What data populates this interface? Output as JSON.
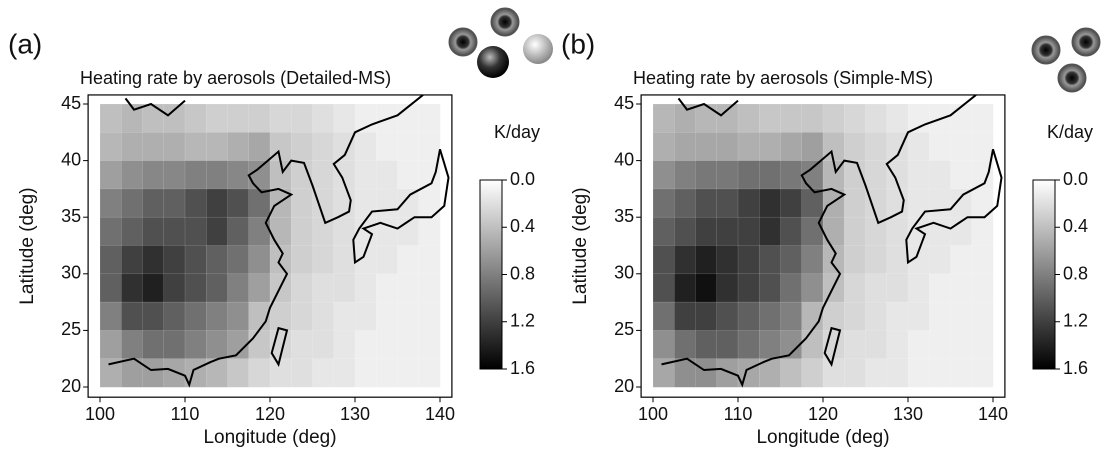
{
  "charts": [
    {
      "type": "heatmap",
      "panel_label": "(a)",
      "title": "Heating rate by aerosols (Detailed-MS)",
      "x_label": "Longitude (deg)",
      "y_label": "Latitude (deg)",
      "xlim": [
        98.6,
        141.4
      ],
      "ylim": [
        19.1,
        45.8
      ],
      "xticks": [
        100,
        110,
        120,
        130,
        140
      ],
      "yticks": [
        20,
        25,
        30,
        35,
        40,
        45
      ],
      "x": [
        101.25,
        103.75,
        106.25,
        108.75,
        111.25,
        113.75,
        116.25,
        118.75,
        121.25,
        123.75,
        126.25,
        128.75,
        131.25,
        133.75,
        136.25,
        138.75
      ],
      "y": [
        43.75,
        41.25,
        38.75,
        36.25,
        33.75,
        31.25,
        28.75,
        26.25,
        23.75,
        21.25
      ],
      "values": [
        [
          0.4,
          0.45,
          0.4,
          0.4,
          0.35,
          0.3,
          0.3,
          0.3,
          0.25,
          0.25,
          0.2,
          0.15,
          0.1,
          0.1,
          0.1,
          0.1
        ],
        [
          0.45,
          0.5,
          0.5,
          0.5,
          0.45,
          0.45,
          0.5,
          0.55,
          0.35,
          0.3,
          0.25,
          0.2,
          0.15,
          0.1,
          0.1,
          0.1
        ],
        [
          0.6,
          0.7,
          0.75,
          0.75,
          0.8,
          0.8,
          0.75,
          0.7,
          0.4,
          0.3,
          0.25,
          0.2,
          0.15,
          0.15,
          0.1,
          0.1
        ],
        [
          0.8,
          0.9,
          1.0,
          1.0,
          1.1,
          1.2,
          1.1,
          0.9,
          0.45,
          0.3,
          0.25,
          0.2,
          0.15,
          0.15,
          0.15,
          0.1
        ],
        [
          0.9,
          1.0,
          1.1,
          1.1,
          1.1,
          1.2,
          1.0,
          0.8,
          0.45,
          0.3,
          0.25,
          0.2,
          0.15,
          0.15,
          0.15,
          0.1
        ],
        [
          1.0,
          1.2,
          1.3,
          1.2,
          1.1,
          1.0,
          0.9,
          0.7,
          0.4,
          0.3,
          0.25,
          0.2,
          0.15,
          0.15,
          0.1,
          0.1
        ],
        [
          1.0,
          1.3,
          1.4,
          1.2,
          1.1,
          1.0,
          0.8,
          0.6,
          0.35,
          0.25,
          0.2,
          0.2,
          0.15,
          0.1,
          0.1,
          0.1
        ],
        [
          0.8,
          1.1,
          1.1,
          1.0,
          0.9,
          0.8,
          0.7,
          0.4,
          0.3,
          0.25,
          0.2,
          0.15,
          0.15,
          0.1,
          0.1,
          0.1
        ],
        [
          0.6,
          0.8,
          0.9,
          0.9,
          0.8,
          0.7,
          0.6,
          0.35,
          0.25,
          0.2,
          0.2,
          0.15,
          0.1,
          0.1,
          0.1,
          0.1
        ],
        [
          0.5,
          0.6,
          0.6,
          0.55,
          0.5,
          0.45,
          0.35,
          0.25,
          0.2,
          0.2,
          0.15,
          0.15,
          0.1,
          0.1,
          0.1,
          0.1
        ]
      ],
      "colorbar": {
        "label": "K/day",
        "lim": [
          0,
          1.6
        ],
        "ticks": [
          {
            "value": 0,
            "label": "0.0"
          },
          0.4,
          0.8,
          1.2,
          1.6
        ]
      }
    },
    {
      "type": "heatmap",
      "panel_label": "(b)",
      "title": "Heating rate by aerosols (Simple-MS)",
      "x_label": "Longitude (deg)",
      "y_label": "Latitude (deg)",
      "xlim": [
        98.6,
        141.4
      ],
      "ylim": [
        19.1,
        45.8
      ],
      "xticks": [
        100,
        110,
        120,
        130,
        140
      ],
      "yticks": [
        20,
        25,
        30,
        35,
        40,
        45
      ],
      "x": [
        101.25,
        103.75,
        106.25,
        108.75,
        111.25,
        113.75,
        116.25,
        118.75,
        121.25,
        123.75,
        126.25,
        128.75,
        131.25,
        133.75,
        136.25,
        138.75
      ],
      "y": [
        43.75,
        41.25,
        38.75,
        36.25,
        33.75,
        31.25,
        28.75,
        26.25,
        23.75,
        21.25
      ],
      "values": [
        [
          0.45,
          0.5,
          0.45,
          0.45,
          0.4,
          0.35,
          0.35,
          0.35,
          0.3,
          0.25,
          0.2,
          0.15,
          0.1,
          0.1,
          0.1,
          0.1
        ],
        [
          0.5,
          0.55,
          0.55,
          0.55,
          0.5,
          0.5,
          0.55,
          0.6,
          0.4,
          0.3,
          0.25,
          0.2,
          0.15,
          0.1,
          0.1,
          0.1
        ],
        [
          0.7,
          0.8,
          0.85,
          0.85,
          0.9,
          0.9,
          0.85,
          0.8,
          0.45,
          0.3,
          0.25,
          0.2,
          0.15,
          0.15,
          0.1,
          0.1
        ],
        [
          0.9,
          1.0,
          1.1,
          1.1,
          1.2,
          1.3,
          1.2,
          1.0,
          0.5,
          0.3,
          0.25,
          0.2,
          0.15,
          0.15,
          0.15,
          0.1
        ],
        [
          1.0,
          1.1,
          1.2,
          1.2,
          1.2,
          1.3,
          1.1,
          0.9,
          0.5,
          0.3,
          0.25,
          0.2,
          0.15,
          0.15,
          0.15,
          0.1
        ],
        [
          1.1,
          1.3,
          1.4,
          1.3,
          1.2,
          1.1,
          1.0,
          0.8,
          0.45,
          0.3,
          0.25,
          0.2,
          0.15,
          0.15,
          0.1,
          0.1
        ],
        [
          1.1,
          1.4,
          1.5,
          1.3,
          1.2,
          1.1,
          0.9,
          0.7,
          0.4,
          0.25,
          0.2,
          0.2,
          0.15,
          0.1,
          0.1,
          0.1
        ],
        [
          0.9,
          1.2,
          1.2,
          1.1,
          1.0,
          0.9,
          0.8,
          0.45,
          0.3,
          0.25,
          0.2,
          0.15,
          0.15,
          0.1,
          0.1,
          0.1
        ],
        [
          0.7,
          0.9,
          1.0,
          1.0,
          0.9,
          0.8,
          0.7,
          0.4,
          0.25,
          0.2,
          0.2,
          0.15,
          0.1,
          0.1,
          0.1,
          0.1
        ],
        [
          0.55,
          0.7,
          0.7,
          0.6,
          0.55,
          0.5,
          0.4,
          0.3,
          0.2,
          0.2,
          0.15,
          0.15,
          0.1,
          0.1,
          0.1,
          0.1
        ]
      ],
      "colorbar": {
        "label": "K/day",
        "lim": [
          0,
          1.6
        ],
        "ticks": [
          {
            "value": 0,
            "label": "0.0"
          },
          0.4,
          0.8,
          1.2,
          1.6
        ]
      }
    }
  ]
}
